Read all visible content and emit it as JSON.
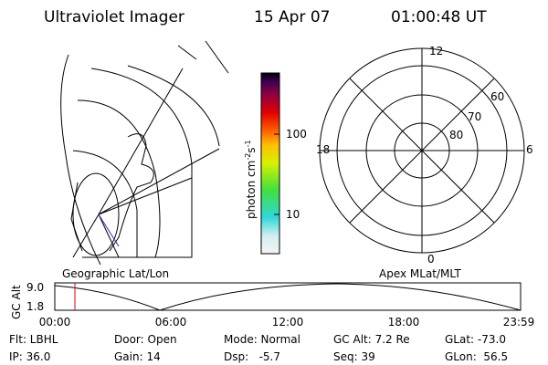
{
  "header": {
    "title": "Ultraviolet Imager",
    "date": "15 Apr 07",
    "time": "01:00:48 UT"
  },
  "colorbar": {
    "label": "photon cm",
    "exp1": "-2",
    "unit2": "s",
    "exp2": "-1",
    "ticks": [
      "100",
      "10"
    ]
  },
  "map_panel": {
    "label": "Geographic Lat/Lon"
  },
  "polar_panel": {
    "label": "Apex MLat/MLT",
    "mlt_labels": [
      "12",
      "18",
      "6",
      "0"
    ],
    "lat_labels": [
      "60",
      "70",
      "80"
    ]
  },
  "timeline": {
    "label": "GC Alt",
    "y_labels": [
      "9.0",
      "1.8"
    ],
    "x_labels": [
      "00:00",
      "06:00",
      "12:00",
      "18:00",
      "23:59"
    ]
  },
  "footer": {
    "rows": [
      [
        "Flt: LBHL",
        "Door: Open",
        "Mode: Normal",
        "GC Alt: 7.2 Re",
        "GLat: -73.0"
      ],
      [
        "IP: 36.0",
        "Gain: 14",
        "Dsp:   -5.7",
        "Seq: 39",
        "GLon:  56.5"
      ]
    ]
  }
}
